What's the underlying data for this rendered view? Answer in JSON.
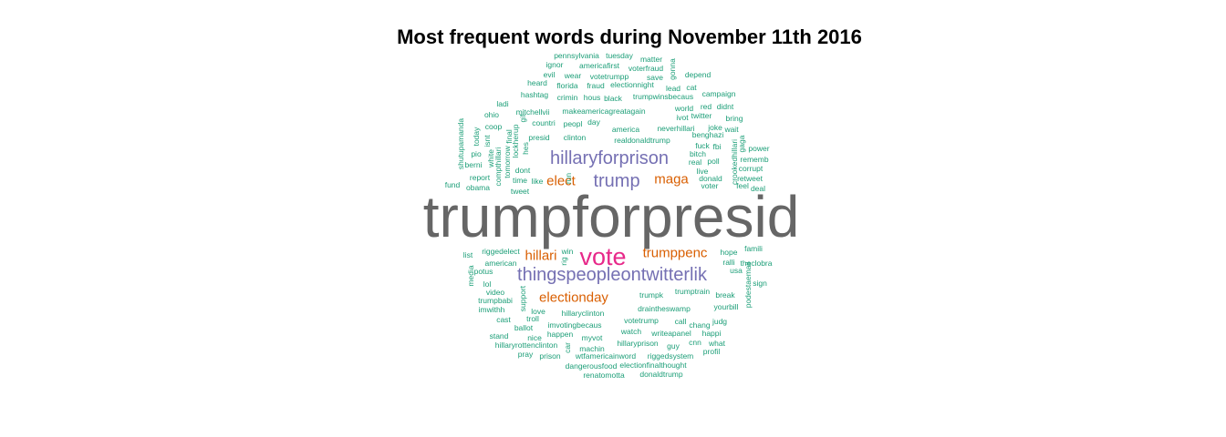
{
  "chart_data": {
    "type": "wordcloud",
    "title": "Most frequent words during November 11th 2016",
    "palette": {
      "tier1": "#666666",
      "tier2": "#e7298a",
      "tier3": "#7570b3",
      "tier4": "#d95f02",
      "tier5": "#1b9e77"
    },
    "words": [
      {
        "text": "trumpforpresid",
        "tier": 1
      },
      {
        "text": "vote",
        "tier": 2
      },
      {
        "text": "hillaryforprison",
        "tier": 3
      },
      {
        "text": "trump",
        "tier": 3
      },
      {
        "text": "thingspeopleontwitterlik",
        "tier": 3
      },
      {
        "text": "maga",
        "tier": 4
      },
      {
        "text": "elect",
        "tier": 4
      },
      {
        "text": "trumppenc",
        "tier": 4
      },
      {
        "text": "electionday",
        "tier": 4
      },
      {
        "text": "hillari",
        "tier": 4
      },
      {
        "text": "realdonaldtrump",
        "tier": 5
      },
      {
        "text": "clinton",
        "tier": 5
      },
      {
        "text": "america",
        "tier": 5
      },
      {
        "text": "neverhillari",
        "tier": 5
      },
      {
        "text": "makeamericagreatagain",
        "tier": 5
      },
      {
        "text": "trumpk",
        "tier": 5
      },
      {
        "text": "hillaryclinton",
        "tier": 5
      },
      {
        "text": "draintheswamp",
        "tier": 5
      },
      {
        "text": "win",
        "tier": 5
      },
      {
        "text": "pennsylvania",
        "tier": 5
      },
      {
        "text": "tuesday",
        "tier": 5
      },
      {
        "text": "matter",
        "tier": 5
      },
      {
        "text": "ignor",
        "tier": 5
      },
      {
        "text": "americafirst",
        "tier": 5
      },
      {
        "text": "voterfraud",
        "tier": 5
      },
      {
        "text": "evil",
        "tier": 5
      },
      {
        "text": "wear",
        "tier": 5
      },
      {
        "text": "votetrumpp",
        "tier": 5
      },
      {
        "text": "save",
        "tier": 5
      },
      {
        "text": "gonna",
        "tier": 5
      },
      {
        "text": "depend",
        "tier": 5
      },
      {
        "text": "heard",
        "tier": 5
      },
      {
        "text": "florida",
        "tier": 5
      },
      {
        "text": "fraud",
        "tier": 5
      },
      {
        "text": "electionnight",
        "tier": 5
      },
      {
        "text": "lead",
        "tier": 5
      },
      {
        "text": "cat",
        "tier": 5
      },
      {
        "text": "hashtag",
        "tier": 5
      },
      {
        "text": "crimin",
        "tier": 5
      },
      {
        "text": "hous",
        "tier": 5
      },
      {
        "text": "black",
        "tier": 5
      },
      {
        "text": "trumpwinsbecaus",
        "tier": 5
      },
      {
        "text": "campaign",
        "tier": 5
      },
      {
        "text": "ladi",
        "tier": 5
      },
      {
        "text": "mitchellvii",
        "tier": 5
      },
      {
        "text": "world",
        "tier": 5
      },
      {
        "text": "red",
        "tier": 5
      },
      {
        "text": "didnt",
        "tier": 5
      },
      {
        "text": "ohio",
        "tier": 5
      },
      {
        "text": "gif",
        "tier": 5
      },
      {
        "text": "ivot",
        "tier": 5
      },
      {
        "text": "twitter",
        "tier": 5
      },
      {
        "text": "bring",
        "tier": 5
      },
      {
        "text": "shutupamanda",
        "tier": 5
      },
      {
        "text": "coop",
        "tier": 5
      },
      {
        "text": "countri",
        "tier": 5
      },
      {
        "text": "peopl",
        "tier": 5
      },
      {
        "text": "day",
        "tier": 5
      },
      {
        "text": "joke",
        "tier": 5
      },
      {
        "text": "wait",
        "tier": 5
      },
      {
        "text": "today",
        "tier": 5
      },
      {
        "text": "final",
        "tier": 5
      },
      {
        "text": "presid",
        "tier": 5
      },
      {
        "text": "benghazi",
        "tier": 5
      },
      {
        "text": "gaga",
        "tier": 5
      },
      {
        "text": "isnt",
        "tier": 5
      },
      {
        "text": "lockherup",
        "tier": 5
      },
      {
        "text": "fuck",
        "tier": 5
      },
      {
        "text": "fbi",
        "tier": 5
      },
      {
        "text": "crookedhillari",
        "tier": 5
      },
      {
        "text": "power",
        "tier": 5
      },
      {
        "text": "pio",
        "tier": 5
      },
      {
        "text": "white",
        "tier": 5
      },
      {
        "text": "tomorrow",
        "tier": 5
      },
      {
        "text": "hes",
        "tier": 5
      },
      {
        "text": "bitch",
        "tier": 5
      },
      {
        "text": "real",
        "tier": 5
      },
      {
        "text": "poll",
        "tier": 5
      },
      {
        "text": "rememb",
        "tier": 5
      },
      {
        "text": "berni",
        "tier": 5
      },
      {
        "text": "compthillari",
        "tier": 5
      },
      {
        "text": "dont",
        "tier": 5
      },
      {
        "text": "live",
        "tier": 5
      },
      {
        "text": "corrupt",
        "tier": 5
      },
      {
        "text": "report",
        "tier": 5
      },
      {
        "text": "time",
        "tier": 5
      },
      {
        "text": "like",
        "tier": 5
      },
      {
        "text": "run",
        "tier": 5
      },
      {
        "text": "donald",
        "tier": 5
      },
      {
        "text": "retweet",
        "tier": 5
      },
      {
        "text": "fund",
        "tier": 5
      },
      {
        "text": "obama",
        "tier": 5
      },
      {
        "text": "tweet",
        "tier": 5
      },
      {
        "text": "voter",
        "tier": 5
      },
      {
        "text": "feel",
        "tier": 5
      },
      {
        "text": "deal",
        "tier": 5
      },
      {
        "text": "riggedelect",
        "tier": 5
      },
      {
        "text": "hope",
        "tier": 5
      },
      {
        "text": "famili",
        "tier": 5
      },
      {
        "text": "list",
        "tier": 5
      },
      {
        "text": "american",
        "tier": 5
      },
      {
        "text": "rig",
        "tier": 5
      },
      {
        "text": "ralli",
        "tier": 5
      },
      {
        "text": "theclobra",
        "tier": 5
      },
      {
        "text": "media",
        "tier": 5
      },
      {
        "text": "potus",
        "tier": 5
      },
      {
        "text": "sign",
        "tier": 5
      },
      {
        "text": "lol",
        "tier": 5
      },
      {
        "text": "support",
        "tier": 5
      },
      {
        "text": "trumptrain",
        "tier": 5
      },
      {
        "text": "break",
        "tier": 5
      },
      {
        "text": "podestaemail",
        "tier": 5
      },
      {
        "text": "video",
        "tier": 5
      },
      {
        "text": "trumpbabi",
        "tier": 5
      },
      {
        "text": "yourbill",
        "tier": 5
      },
      {
        "text": "imwithh",
        "tier": 5
      },
      {
        "text": "love",
        "tier": 5
      },
      {
        "text": "troll",
        "tier": 5
      },
      {
        "text": "cast",
        "tier": 5
      },
      {
        "text": "imvotingbecaus",
        "tier": 5
      },
      {
        "text": "votetrump",
        "tier": 5
      },
      {
        "text": "call",
        "tier": 5
      },
      {
        "text": "chang",
        "tier": 5
      },
      {
        "text": "judg",
        "tier": 5
      },
      {
        "text": "ballot",
        "tier": 5
      },
      {
        "text": "happen",
        "tier": 5
      },
      {
        "text": "watch",
        "tier": 5
      },
      {
        "text": "writeapanel",
        "tier": 5
      },
      {
        "text": "happi",
        "tier": 5
      },
      {
        "text": "stand",
        "tier": 5
      },
      {
        "text": "nice",
        "tier": 5
      },
      {
        "text": "myvot",
        "tier": 5
      },
      {
        "text": "cnn",
        "tier": 5
      },
      {
        "text": "what",
        "tier": 5
      },
      {
        "text": "hillaryrottenclinton",
        "tier": 5
      },
      {
        "text": "car",
        "tier": 5
      },
      {
        "text": "hillaryprison",
        "tier": 5
      },
      {
        "text": "guy",
        "tier": 5
      },
      {
        "text": "profil",
        "tier": 5
      },
      {
        "text": "pray",
        "tier": 5
      },
      {
        "text": "prison",
        "tier": 5
      },
      {
        "text": "machin",
        "tier": 5
      },
      {
        "text": "wtfamericainword",
        "tier": 5
      },
      {
        "text": "riggedsystem",
        "tier": 5
      },
      {
        "text": "dangerousfood",
        "tier": 5
      },
      {
        "text": "electionfinalthought",
        "tier": 5
      },
      {
        "text": "renatomotta",
        "tier": 5
      },
      {
        "text": "donaldtrump",
        "tier": 5
      },
      {
        "text": "usa",
        "tier": 5
      }
    ]
  }
}
